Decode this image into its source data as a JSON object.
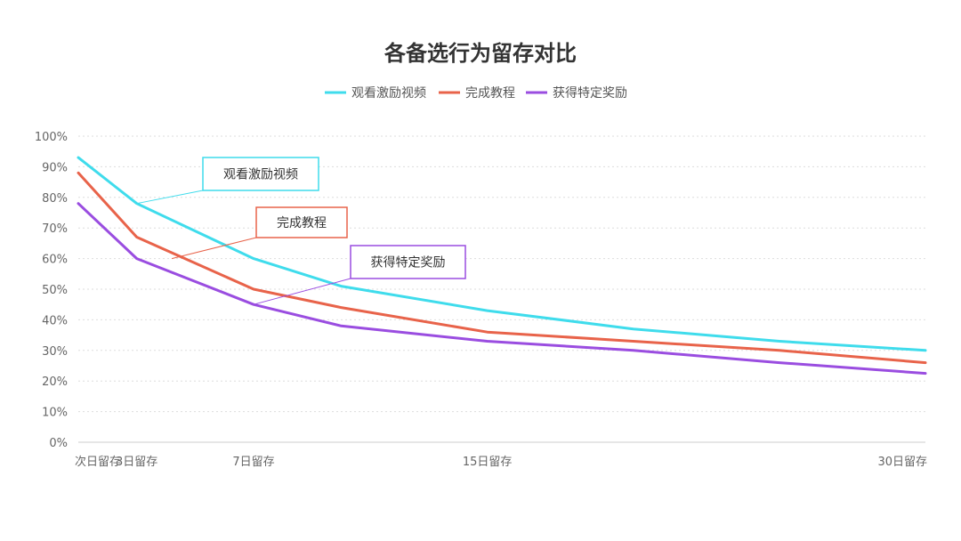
{
  "chart_data": {
    "type": "line",
    "title": "各备选行为留存对比",
    "x_positions": [
      1,
      3,
      7,
      10,
      15,
      20,
      25,
      30
    ],
    "x_tick_labels": [
      {
        "x": 1,
        "label": "次日留存"
      },
      {
        "x": 3,
        "label": "3日留存"
      },
      {
        "x": 7,
        "label": "7日留存"
      },
      {
        "x": 15,
        "label": "15日留存"
      },
      {
        "x": 30,
        "label": "30日留存"
      }
    ],
    "ylim": [
      0,
      100
    ],
    "y_ticks": [
      "0%",
      "10%",
      "20%",
      "30%",
      "40%",
      "50%",
      "60%",
      "70%",
      "80%",
      "90%",
      "100%"
    ],
    "grid": true,
    "legend_position": "top-center",
    "series": [
      {
        "name": "观看激励视频",
        "color": "#3fdcec",
        "values": [
          93,
          78,
          60,
          51,
          43,
          37,
          33,
          30
        ]
      },
      {
        "name": "完成教程",
        "color": "#e8634a",
        "values": [
          88,
          67,
          50,
          44,
          36,
          33,
          30,
          26
        ]
      },
      {
        "name": "获得特定奖励",
        "color": "#9a4de0",
        "values": [
          78,
          60,
          45,
          38,
          33,
          30,
          26,
          22.5
        ]
      }
    ],
    "annotations": [
      {
        "text": "观看激励视频",
        "color": "#3fdcec",
        "x": 3,
        "y": 78
      },
      {
        "text": "完成教程",
        "color": "#e8634a",
        "x": 4.2,
        "y": 60
      },
      {
        "text": "获得特定奖励",
        "color": "#9a4de0",
        "x": 7,
        "y": 45
      }
    ]
  }
}
